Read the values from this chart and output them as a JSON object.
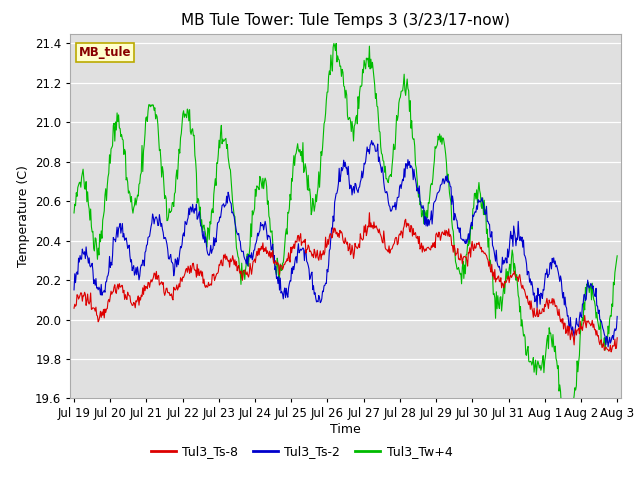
{
  "title": "MB Tule Tower: Tule Temps 3 (3/23/17-now)",
  "xlabel": "Time",
  "ylabel": "Temperature (C)",
  "ylim": [
    19.6,
    21.45
  ],
  "yticks": [
    19.6,
    19.8,
    20.0,
    20.2,
    20.4,
    20.6,
    20.8,
    21.0,
    21.2,
    21.4
  ],
  "xtick_labels": [
    "Jul 19",
    "Jul 20",
    "Jul 21",
    "Jul 22",
    "Jul 23",
    "Jul 24",
    "Jul 25",
    "Jul 26",
    "Jul 27",
    "Jul 28",
    "Jul 29",
    "Jul 30",
    "Jul 31",
    "Aug 1",
    "Aug 2",
    "Aug 3"
  ],
  "colors": {
    "Tul3_Ts-8": "#dd0000",
    "Tul3_Ts-2": "#0000cc",
    "Tul3_Tw+4": "#00bb00"
  },
  "line_width": 0.8,
  "fig_bg_color": "#ffffff",
  "plot_bg_color": "#e0e0e0",
  "grid_color": "#ffffff",
  "legend_box_facecolor": "#ffffcc",
  "legend_box_edgecolor": "#bbaa00",
  "legend_text_color": "#880000",
  "title_fontsize": 11,
  "axis_label_fontsize": 9,
  "tick_fontsize": 8.5,
  "legend_fontsize": 9
}
